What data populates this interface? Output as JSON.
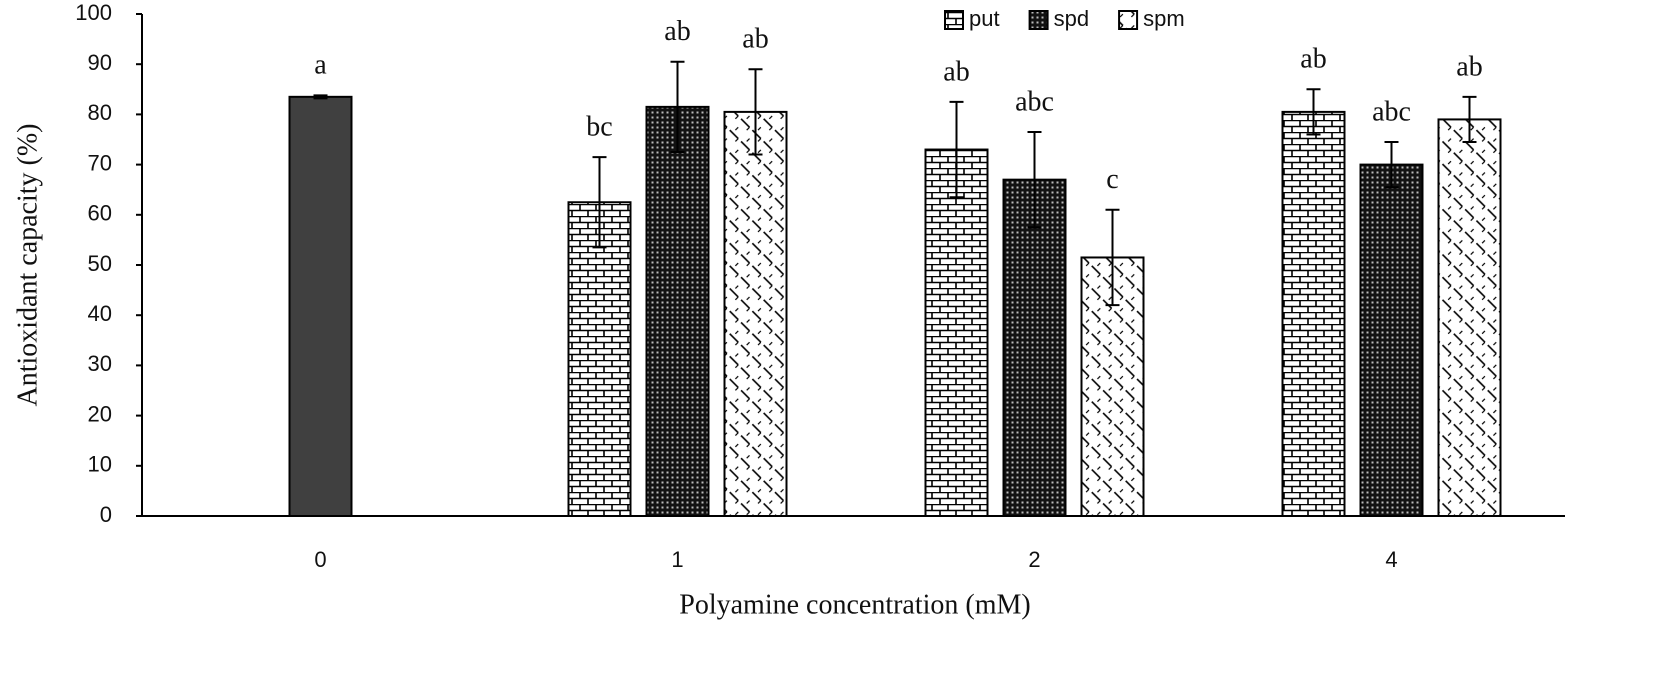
{
  "chart_data": {
    "type": "bar",
    "x_label": "Polyamine concentration (mM)",
    "y_label": "Antioxidant capacity (%)",
    "categories": [
      "0",
      "1",
      "2",
      "4"
    ],
    "series": [
      {
        "color": "#404040",
        "values": [
          83.5,
          null,
          null,
          null
        ],
        "errors": [
          0.3,
          null,
          null,
          null
        ],
        "letters": [
          "a",
          null,
          null,
          null
        ]
      },
      {
        "name": "put",
        "color": "#000000",
        "pattern": "brick",
        "values": [
          null,
          62.5,
          73,
          80.5
        ],
        "errors": [
          null,
          9,
          9.5,
          4.5
        ],
        "letters": [
          null,
          "bc",
          "ab",
          "ab"
        ]
      },
      {
        "name": "spd",
        "color": "#000000",
        "pattern": "dots",
        "values": [
          null,
          81.5,
          67,
          70
        ],
        "errors": [
          null,
          9,
          9.5,
          4.5
        ],
        "letters": [
          null,
          "ab",
          "abc",
          "abc"
        ]
      },
      {
        "name": "spm",
        "color": "#000000",
        "pattern": "hatch",
        "values": [
          null,
          80.5,
          51.5,
          79
        ],
        "errors": [
          null,
          8.5,
          9.5,
          4.5
        ],
        "letters": [
          null,
          "ab",
          "c",
          "ab"
        ]
      }
    ],
    "ylim": [
      0,
      100
    ],
    "yticks": [
      0,
      10,
      20,
      30,
      40,
      50,
      60,
      70,
      80,
      90,
      100
    ],
    "grid": false,
    "legend": "top"
  }
}
